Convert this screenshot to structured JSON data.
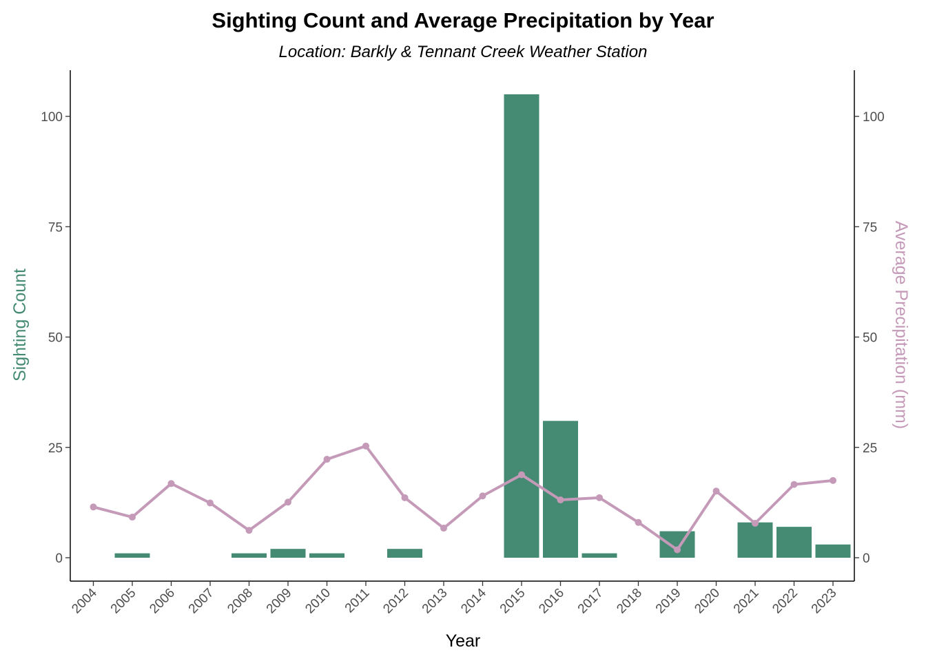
{
  "chart_data": {
    "type": "bar",
    "title": "Sighting Count and Average Precipitation by Year",
    "subtitle": "Location: Barkly & Tennant Creek Weather Station",
    "xlabel": "Year",
    "ylabel": "Sighting Count",
    "y2label": "Average Precipitation (mm)",
    "ylim": [
      -5,
      110
    ],
    "y_ticks": [
      0,
      25,
      50,
      75,
      100
    ],
    "grid": false,
    "legend": "none",
    "categories": [
      "2004",
      "2005",
      "2006",
      "2007",
      "2008",
      "2009",
      "2010",
      "2011",
      "2012",
      "2013",
      "2014",
      "2015",
      "2016",
      "2017",
      "2018",
      "2019",
      "2020",
      "2021",
      "2022",
      "2023"
    ],
    "series": [
      {
        "kind": "bar",
        "axis": "left",
        "color": "#458B73",
        "values": [
          0,
          1,
          0,
          0,
          1,
          2,
          1,
          0,
          2,
          0,
          0,
          105,
          31,
          1,
          0,
          6,
          0,
          8,
          7,
          3
        ]
      },
      {
        "kind": "line",
        "axis": "right",
        "color": "#C49AB8",
        "values": [
          11.5,
          9.2,
          16.8,
          12.4,
          6.2,
          12.6,
          22.3,
          25.3,
          13.6,
          6.7,
          14.0,
          18.8,
          13.1,
          13.6,
          8.0,
          1.8,
          15.1,
          7.8,
          16.6,
          17.5
        ]
      }
    ]
  }
}
